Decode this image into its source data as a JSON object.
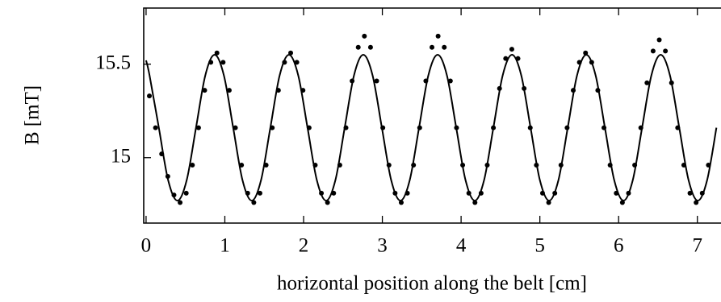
{
  "chart_data": {
    "type": "scatter",
    "xlabel": "horizontal position along the belt [cm]",
    "ylabel": "B [mT]",
    "xlim": [
      -0.03,
      7.3
    ],
    "ylim": [
      14.65,
      15.8
    ],
    "xticks": [
      0,
      1,
      2,
      3,
      4,
      5,
      6,
      7
    ],
    "yticks": [
      15,
      15.5
    ],
    "grid": false,
    "series": [
      {
        "kind": "points",
        "color": "#000000",
        "x": [
          0.042,
          0.12,
          0.198,
          0.276,
          0.354,
          0.432,
          0.51,
          0.588,
          0.666,
          0.744,
          0.822,
          0.9,
          0.978,
          1.056,
          1.134,
          1.212,
          1.29,
          1.368,
          1.446,
          1.524,
          1.602,
          1.68,
          1.758,
          1.836,
          1.914,
          1.992,
          2.07,
          2.148,
          2.226,
          2.304,
          2.382,
          2.46,
          2.538,
          2.616,
          2.694,
          2.772,
          2.85,
          2.928,
          3.006,
          3.084,
          3.162,
          3.24,
          3.318,
          3.396,
          3.474,
          3.552,
          3.63,
          3.708,
          3.786,
          3.864,
          3.942,
          4.02,
          4.098,
          4.176,
          4.254,
          4.332,
          4.41,
          4.488,
          4.566,
          4.644,
          4.722,
          4.8,
          4.878,
          4.956,
          5.034,
          5.112,
          5.19,
          5.268,
          5.346,
          5.424,
          5.502,
          5.58,
          5.658,
          5.736,
          5.814,
          5.892,
          5.97,
          6.048,
          6.126,
          6.204,
          6.282,
          6.36,
          6.438,
          6.516,
          6.594,
          6.672,
          6.75,
          6.828,
          6.906,
          6.984,
          7.062,
          7.14
        ],
        "values": [
          15.33,
          15.16,
          15.02,
          14.9,
          14.8,
          14.76,
          14.81,
          14.96,
          15.16,
          15.36,
          15.51,
          15.56,
          15.51,
          15.36,
          15.16,
          14.96,
          14.81,
          14.76,
          14.81,
          14.96,
          15.16,
          15.36,
          15.51,
          15.56,
          15.51,
          15.36,
          15.16,
          14.96,
          14.81,
          14.76,
          14.81,
          14.96,
          15.16,
          15.41,
          15.59,
          15.65,
          15.59,
          15.41,
          15.16,
          14.96,
          14.81,
          14.76,
          14.81,
          14.96,
          15.16,
          15.41,
          15.59,
          15.65,
          15.59,
          15.41,
          15.16,
          14.96,
          14.81,
          14.76,
          14.81,
          14.96,
          15.16,
          15.37,
          15.53,
          15.58,
          15.53,
          15.37,
          15.16,
          14.96,
          14.81,
          14.76,
          14.81,
          14.96,
          15.16,
          15.36,
          15.51,
          15.56,
          15.51,
          15.36,
          15.16,
          14.96,
          14.81,
          14.76,
          14.81,
          14.96,
          15.16,
          15.4,
          15.57,
          15.63,
          15.57,
          15.4,
          15.16,
          14.96,
          14.81,
          14.76,
          14.81,
          14.96
        ]
      },
      {
        "kind": "line",
        "color": "#000000",
        "x": [
          0,
          0.044,
          0.162,
          0.28,
          0.398,
          0.516,
          0.634,
          0.752,
          0.87,
          0.988,
          1.106,
          1.224,
          1.342,
          1.46,
          1.578,
          1.696,
          1.814,
          1.932,
          2.05,
          2.168,
          2.286,
          2.404,
          2.522,
          2.64,
          2.758,
          2.876,
          2.994,
          3.112,
          3.23,
          3.348,
          3.466,
          3.584,
          3.702,
          3.82,
          3.938,
          4.056,
          4.174,
          4.292,
          4.41,
          4.528,
          4.646,
          4.764,
          4.882,
          5.0,
          5.118,
          5.236,
          5.354,
          5.472,
          5.59,
          5.708,
          5.826,
          5.944,
          6.062,
          6.18,
          6.298,
          6.416,
          6.534,
          6.652,
          6.77,
          6.888,
          7.006,
          7.124,
          7.242
        ],
        "values": [
          15.52,
          15.44,
          15.16,
          14.88,
          14.77,
          14.88,
          15.16,
          15.44,
          15.55,
          15.44,
          15.16,
          14.88,
          14.77,
          14.88,
          15.16,
          15.44,
          15.55,
          15.44,
          15.16,
          14.88,
          14.77,
          14.88,
          15.16,
          15.44,
          15.55,
          15.44,
          15.16,
          14.88,
          14.77,
          14.88,
          15.16,
          15.44,
          15.55,
          15.44,
          15.16,
          14.88,
          14.77,
          14.88,
          15.16,
          15.44,
          15.55,
          15.44,
          15.16,
          14.88,
          14.77,
          14.88,
          15.16,
          15.44,
          15.55,
          15.44,
          15.16,
          14.88,
          14.77,
          14.88,
          15.16,
          15.44,
          15.55,
          15.44,
          15.16,
          14.88,
          14.77,
          14.88,
          15.16
        ]
      }
    ]
  }
}
